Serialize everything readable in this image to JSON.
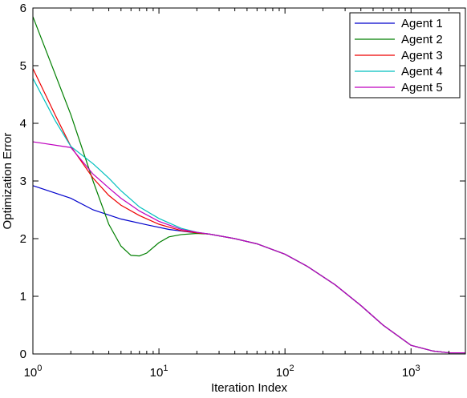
{
  "chart_data": {
    "type": "line",
    "title": "",
    "xlabel": "Iteration Index",
    "ylabel": "Optimization Error",
    "xscale": "log",
    "xlim": [
      1,
      2700
    ],
    "ylim": [
      0,
      6
    ],
    "x_tick_labels": [
      {
        "value": 1,
        "base": "10",
        "exp": "0"
      },
      {
        "value": 10,
        "base": "10",
        "exp": "1"
      },
      {
        "value": 100,
        "base": "10",
        "exp": "2"
      },
      {
        "value": 1000,
        "base": "10",
        "exp": "3"
      }
    ],
    "y_ticks": [
      0,
      1,
      2,
      3,
      4,
      5,
      6
    ],
    "grid": false,
    "legend_position": "top-right",
    "series": [
      {
        "name": "Agent 1",
        "color": "#0000cc",
        "x": [
          1,
          2,
          3,
          5,
          8,
          12,
          18,
          25,
          40,
          60,
          100,
          150,
          250,
          400,
          600,
          1000,
          1500,
          2000,
          2700
        ],
        "y": [
          2.92,
          2.7,
          2.5,
          2.34,
          2.24,
          2.16,
          2.11,
          2.08,
          2.0,
          1.91,
          1.73,
          1.52,
          1.2,
          0.84,
          0.5,
          0.15,
          0.05,
          0.02,
          0.02
        ]
      },
      {
        "name": "Agent 2",
        "color": "#007f00",
        "x": [
          1,
          2,
          3,
          4,
          5,
          6,
          7,
          8,
          10,
          12,
          15,
          20,
          25,
          40,
          60,
          100,
          150,
          250,
          400,
          600,
          1000,
          1500,
          2000,
          2700
        ],
        "y": [
          5.85,
          4.15,
          3.0,
          2.25,
          1.87,
          1.71,
          1.7,
          1.75,
          1.93,
          2.03,
          2.07,
          2.09,
          2.08,
          2.0,
          1.91,
          1.73,
          1.52,
          1.2,
          0.84,
          0.5,
          0.15,
          0.05,
          0.02,
          0.02
        ]
      },
      {
        "name": "Agent 3",
        "color": "#ee0000",
        "x": [
          1,
          1.5,
          2,
          3,
          4,
          5,
          7,
          10,
          15,
          20,
          25,
          40,
          60,
          100,
          150,
          250,
          400,
          600,
          1000,
          1500,
          2000,
          2700
        ],
        "y": [
          4.95,
          4.15,
          3.6,
          3.05,
          2.75,
          2.58,
          2.4,
          2.25,
          2.14,
          2.1,
          2.08,
          2.0,
          1.91,
          1.73,
          1.52,
          1.2,
          0.84,
          0.5,
          0.15,
          0.05,
          0.02,
          0.02
        ]
      },
      {
        "name": "Agent 4",
        "color": "#00bfbf",
        "x": [
          1,
          1.5,
          2,
          3,
          4,
          5,
          7,
          10,
          15,
          20,
          25,
          40,
          60,
          100,
          150,
          250,
          400,
          600,
          1000,
          1500,
          2000,
          2700
        ],
        "y": [
          4.78,
          4.05,
          3.6,
          3.3,
          3.05,
          2.83,
          2.55,
          2.35,
          2.18,
          2.11,
          2.08,
          2.0,
          1.91,
          1.73,
          1.52,
          1.2,
          0.84,
          0.5,
          0.15,
          0.05,
          0.02,
          0.02
        ]
      },
      {
        "name": "Agent 5",
        "color": "#bf00bf",
        "x": [
          1,
          2,
          3,
          4,
          5,
          7,
          10,
          15,
          20,
          25,
          40,
          60,
          100,
          150,
          250,
          400,
          600,
          1000,
          1500,
          2000,
          2700
        ],
        "y": [
          3.68,
          3.58,
          3.12,
          2.88,
          2.7,
          2.48,
          2.3,
          2.16,
          2.11,
          2.08,
          2.0,
          1.91,
          1.73,
          1.52,
          1.2,
          0.84,
          0.5,
          0.15,
          0.05,
          0.02,
          0.02
        ]
      }
    ]
  }
}
